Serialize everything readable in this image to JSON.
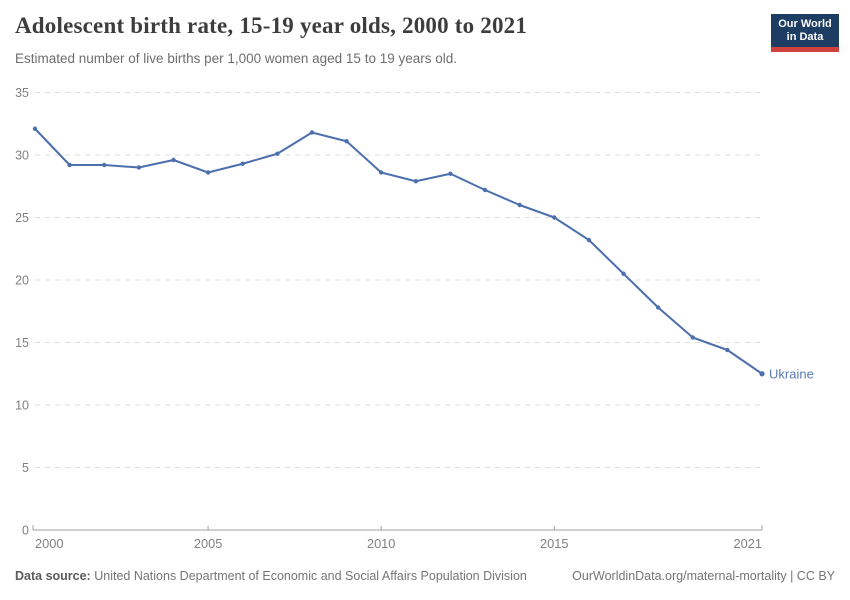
{
  "header": {
    "title": "Adolescent birth rate, 15-19 year olds, 2000 to 2021",
    "subtitle": "Estimated number of live births per 1,000 women aged 15 to 19 years old.",
    "logo_line1": "Our World",
    "logo_line2": "in Data"
  },
  "chart_data": {
    "type": "line",
    "title": "Adolescent birth rate, 15-19 year olds, 2000 to 2021",
    "x": [
      2000,
      2001,
      2002,
      2003,
      2004,
      2005,
      2006,
      2007,
      2008,
      2009,
      2010,
      2011,
      2012,
      2013,
      2014,
      2015,
      2016,
      2017,
      2018,
      2019,
      2020,
      2021
    ],
    "series": [
      {
        "name": "Ukraine",
        "values": [
          32.1,
          29.2,
          29.2,
          29.0,
          29.6,
          28.6,
          29.3,
          30.1,
          31.8,
          31.1,
          28.6,
          27.9,
          28.5,
          27.2,
          26.0,
          25.0,
          23.2,
          20.5,
          17.8,
          15.4,
          14.4,
          12.5
        ]
      }
    ],
    "xlabel": "",
    "ylabel": "",
    "ylim": [
      0,
      35
    ],
    "yticks": [
      0,
      5,
      10,
      15,
      20,
      25,
      30,
      35
    ],
    "xticks": [
      2000,
      2005,
      2010,
      2015,
      2021
    ],
    "grid": "horizontal-dashed",
    "legend": "end-of-line-entity-label",
    "entity_label": "Ukraine"
  },
  "footer": {
    "source_label": "Data source:",
    "source_text": "United Nations Department of Economic and Social Affairs Population Division",
    "link_text": "OurWorldinData.org/maternal-mortality | CC BY"
  },
  "colors": {
    "line": "#4c6fae",
    "entity_label": "#5b7ab5",
    "title_text": "#3d3d3d",
    "subtitle_text": "#6e6e6e",
    "axis_label": "#818181",
    "gridline": "#dedede",
    "axis_line": "#a0a0a0",
    "logo_bg": "#1d3d63",
    "logo_bar": "#d0413d",
    "footer_text": "#757575"
  }
}
